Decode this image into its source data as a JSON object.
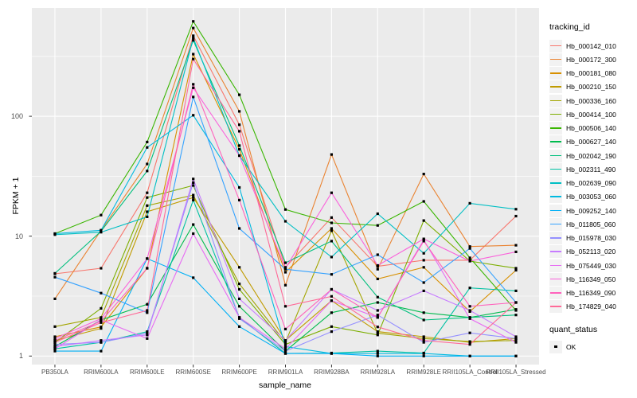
{
  "chart_data": {
    "type": "line",
    "title": "",
    "xlabel": "sample_name",
    "ylabel": "FPKM + 1",
    "y_scale": "log10",
    "grid": true,
    "panel_bg": "#EBEBEB",
    "grid_color": "#FFFFFF",
    "axis_text_color": "#4D4D4D",
    "point_color": "#000000",
    "key_bg": "#F2F2F2",
    "y_ticks": [
      {
        "label": "1",
        "value": 1
      },
      {
        "label": "10",
        "value": 10
      },
      {
        "label": "100",
        "value": 100
      }
    ],
    "y_minor_values": [
      3.162,
      31.62,
      316.2
    ],
    "ylim": [
      0.85,
      800
    ],
    "categories": [
      "PB350LA",
      "RRIM600LA",
      "RRIM600LE",
      "RRIM600SE",
      "RRIM600PE",
      "RRIM901LA",
      "RRIM928BA",
      "RRIM928LA",
      "RRIM928LE",
      "RRII105LA_Control",
      "RRII105LA_Stressed"
    ],
    "series": [
      {
        "name": "Hb_000142_010",
        "color": "#F8766D",
        "values": [
          4.85,
          5.4,
          23,
          470,
          85,
          5.5,
          14.3,
          5.6,
          6.3,
          6.3,
          14.7
        ]
      },
      {
        "name": "Hb_000172_300",
        "color": "#EA8331",
        "values": [
          3.0,
          11.2,
          40,
          545,
          110,
          3.9,
          48,
          5.3,
          33,
          8.2,
          8.4
        ]
      },
      {
        "name": "Hb_000181_080",
        "color": "#D89000",
        "values": [
          1.45,
          1.75,
          5.4,
          330,
          53,
          5.0,
          11.6,
          4.4,
          5.5,
          2.35,
          5.2
        ]
      },
      {
        "name": "Hb_000210_150",
        "color": "#C09B00",
        "values": [
          1.35,
          1.7,
          16,
          21,
          5.5,
          1.35,
          2.9,
          1.6,
          1.45,
          1.3,
          1.4
        ]
      },
      {
        "name": "Hb_000336_160",
        "color": "#A3A500",
        "values": [
          1.76,
          2.1,
          18,
          22,
          4.0,
          1.3,
          11.1,
          1.55,
          1.4,
          1.32,
          1.35
        ]
      },
      {
        "name": "Hb_000414_100",
        "color": "#7CAE00",
        "values": [
          1.3,
          2.5,
          21,
          26.5,
          3.6,
          1.25,
          1.76,
          1.5,
          13.5,
          6.2,
          5.4
        ]
      },
      {
        "name": "Hb_000506_140",
        "color": "#39B600",
        "values": [
          10.5,
          15,
          61,
          620,
          151,
          16.7,
          12.9,
          12.3,
          19.5,
          6.6,
          2.4
        ]
      },
      {
        "name": "Hb_000627_140",
        "color": "#00BB4E",
        "values": [
          1.2,
          2.0,
          2.7,
          12.5,
          2.6,
          1.1,
          2.3,
          2.8,
          2.3,
          2.1,
          2.45
        ]
      },
      {
        "name": "Hb_002042_190",
        "color": "#00BF7D",
        "values": [
          4.9,
          11.0,
          35,
          430,
          57,
          6.0,
          9.1,
          3.1,
          2.0,
          2.1,
          2.2
        ]
      },
      {
        "name": "Hb_002311_490",
        "color": "#00C1A3",
        "values": [
          1.15,
          1.3,
          1.6,
          20,
          2.1,
          1.05,
          1.06,
          1.1,
          1.06,
          3.7,
          3.5
        ]
      },
      {
        "name": "Hb_002639_090",
        "color": "#00BFC4",
        "values": [
          10.3,
          10.8,
          14.5,
          450,
          47,
          13.3,
          6.7,
          15.4,
          7.2,
          18.8,
          16.8
        ]
      },
      {
        "name": "Hb_003053_060",
        "color": "#00BAE0",
        "values": [
          10.5,
          11.2,
          55,
          102,
          25.5,
          1.2,
          1.05,
          1.05,
          1.05,
          1.0,
          1.0
        ]
      },
      {
        "name": "Hb_009252_140",
        "color": "#00B0F6",
        "values": [
          1.1,
          1.1,
          6.5,
          4.5,
          1.76,
          1.05,
          1.05,
          1.0,
          1.0,
          1.0,
          1.0
        ]
      },
      {
        "name": "Hb_011805_060",
        "color": "#35A2FF",
        "values": [
          4.55,
          3.35,
          2.3,
          145,
          11.6,
          5.3,
          4.8,
          7.0,
          4.1,
          7.9,
          2.8
        ]
      },
      {
        "name": "Hb_015978_030",
        "color": "#9590FF",
        "values": [
          1.25,
          1.3,
          1.55,
          28,
          2.05,
          1.1,
          1.6,
          2.2,
          1.3,
          1.56,
          1.4
        ]
      },
      {
        "name": "Hb_052113_020",
        "color": "#C77CFF",
        "values": [
          1.2,
          1.35,
          1.5,
          30,
          3.0,
          1.35,
          3.6,
          2.4,
          3.5,
          2.4,
          1.45
        ]
      },
      {
        "name": "Hb_075449_030",
        "color": "#E76BF3",
        "values": [
          1.15,
          2.0,
          1.4,
          10.5,
          2.1,
          1.15,
          2.9,
          2.1,
          9.3,
          2.05,
          1.3
        ]
      },
      {
        "name": "Hb_116349_050",
        "color": "#FA62DB",
        "values": [
          1.4,
          2.05,
          6.5,
          173,
          47,
          5.4,
          23,
          5.7,
          9.5,
          6.2,
          7.4
        ]
      },
      {
        "name": "Hb_116349_090",
        "color": "#FF62BC",
        "values": [
          1.35,
          1.95,
          5.4,
          185,
          20,
          1.68,
          3.6,
          2.1,
          9.1,
          2.6,
          2.8
        ]
      },
      {
        "name": "Hb_174829_040",
        "color": "#FF6A98",
        "values": [
          1.3,
          1.9,
          2.4,
          300,
          75,
          2.6,
          3.15,
          1.75,
          1.35,
          1.25,
          2.8
        ]
      }
    ],
    "legend": {
      "color_title": "tracking_id",
      "shape_title": "quant_status",
      "shape_items": [
        {
          "label": "OK"
        }
      ],
      "position": "right"
    }
  }
}
